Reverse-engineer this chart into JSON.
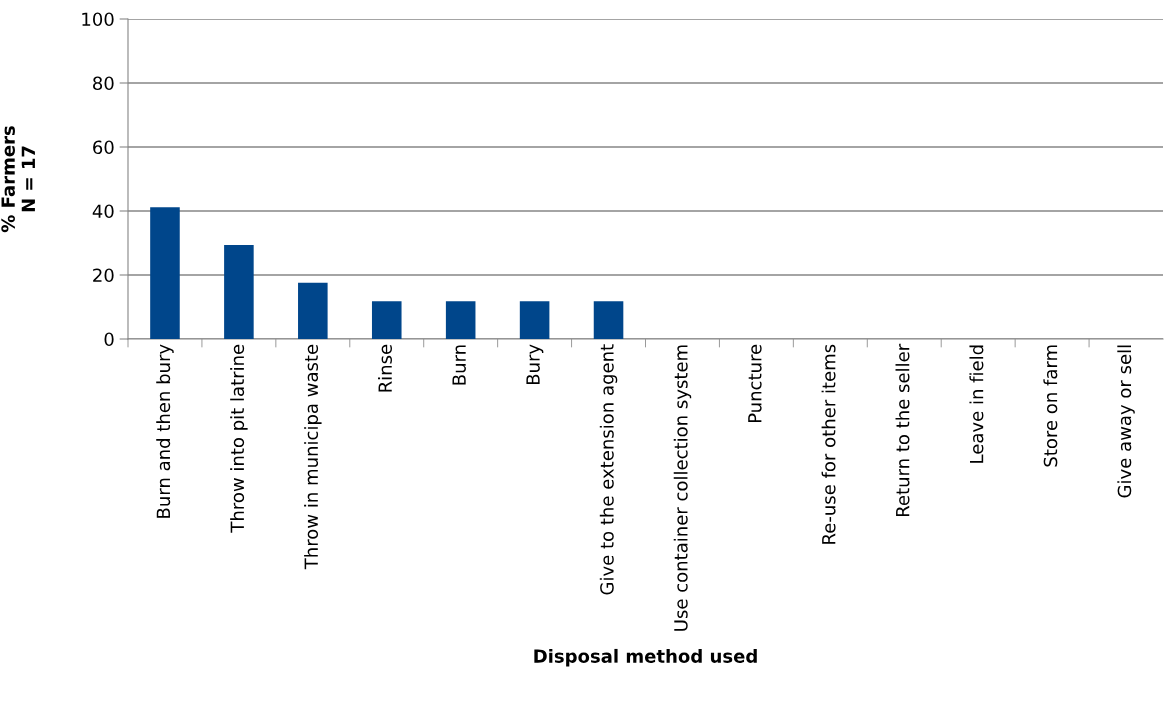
{
  "chart_data": {
    "type": "bar",
    "xlabel": "Disposal method used",
    "ylabel": "% Farmers\nN = 17",
    "categories": [
      "Burn and then bury",
      "Throw into pit latrine",
      "Throw in municipa waste",
      "Rinse",
      "Burn",
      "Bury",
      "Give to the extension agent",
      "Use container collection system",
      "Puncture",
      "Re-use for other items",
      "Return to the seller",
      "Leave in field",
      "Store on farm",
      "Give away or sell"
    ],
    "values": [
      41.2,
      29.4,
      17.6,
      11.8,
      11.8,
      11.8,
      11.8,
      0,
      0,
      0,
      0,
      0,
      0,
      0
    ],
    "color": "#00468b",
    "ylim": [
      0,
      100
    ],
    "yticks": [
      0,
      20,
      40,
      60,
      80,
      100
    ],
    "grid": "y",
    "legend": false
  }
}
